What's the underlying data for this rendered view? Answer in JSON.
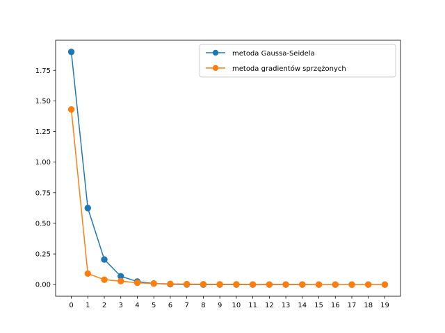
{
  "chart_data": {
    "type": "line",
    "title": "",
    "xlabel": "",
    "ylabel": "",
    "x": [
      0,
      1,
      2,
      3,
      4,
      5,
      6,
      7,
      8,
      9,
      10,
      11,
      12,
      13,
      14,
      15,
      16,
      17,
      18,
      19
    ],
    "xticks": [
      "0",
      "1",
      "2",
      "3",
      "4",
      "5",
      "6",
      "7",
      "8",
      "9",
      "10",
      "11",
      "12",
      "13",
      "14",
      "15",
      "16",
      "17",
      "18",
      "19"
    ],
    "yticks": [
      0.0,
      0.25,
      0.5,
      0.75,
      1.0,
      1.25,
      1.5,
      1.75
    ],
    "ytick_labels": [
      "0.00",
      "0.25",
      "0.50",
      "0.75",
      "1.00",
      "1.25",
      "1.50",
      "1.75"
    ],
    "xlim": [
      -0.95,
      19.95
    ],
    "ylim": [
      -0.095,
      1.995
    ],
    "grid": false,
    "legend_position": "top-right",
    "series": [
      {
        "name": "metoda Gaussa-Seidela",
        "color": "#1f77b4",
        "marker": "circle",
        "values": [
          1.9,
          0.625,
          0.205,
          0.068,
          0.025,
          0.009,
          0.003,
          0.001,
          0.0005,
          0.0002,
          0.0001,
          0.0,
          0.0,
          0.0,
          0.0,
          0.0,
          0.0,
          0.0,
          0.0,
          0.0
        ]
      },
      {
        "name": "metoda gradientów sprzężonych",
        "color": "#ff7f0e",
        "marker": "circle",
        "values": [
          1.43,
          0.09,
          0.04,
          0.028,
          0.015,
          0.009,
          0.006,
          0.004,
          0.003,
          0.002,
          0.002,
          0.001,
          0.001,
          0.001,
          0.001,
          0.0,
          0.0,
          0.0,
          0.0,
          0.0
        ]
      }
    ]
  }
}
